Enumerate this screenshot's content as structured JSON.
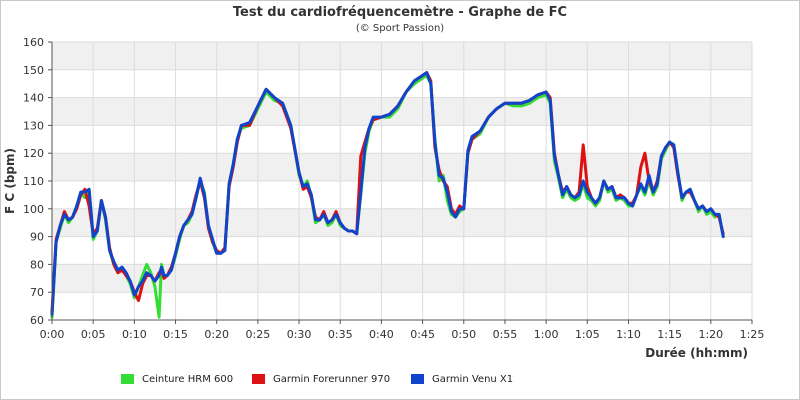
{
  "chart_data": {
    "type": "line",
    "title": "Test du cardiofréquencemètre - Graphe de FC",
    "subtitle": "(© Sport Passion)",
    "xlabel": "Durée (hh:mm)",
    "ylabel": "F C (bpm)",
    "xlim": [
      0,
      85
    ],
    "ylim": [
      60,
      160
    ],
    "x_ticks": [
      0,
      5,
      10,
      15,
      20,
      25,
      30,
      35,
      40,
      45,
      50,
      55,
      60,
      65,
      70,
      75,
      80,
      85
    ],
    "x_tick_labels": [
      "0:00",
      "0:05",
      "0:10",
      "0:15",
      "0:20",
      "0:25",
      "0:30",
      "0:35",
      "0:40",
      "0:45",
      "0:50",
      "0:55",
      "1:00",
      "1:05",
      "1:10",
      "1:15",
      "1:20",
      "1:25"
    ],
    "y_ticks": [
      60,
      70,
      80,
      90,
      100,
      110,
      120,
      130,
      140,
      150,
      160
    ],
    "grid": true,
    "legend_position": "bottom",
    "x_unit": "minutes",
    "series": [
      {
        "name": "Ceinture HRM 600",
        "color": "#33dd33",
        "x": [
          0,
          0.5,
          1,
          1.5,
          2,
          2.5,
          3,
          3.5,
          4,
          4.5,
          5,
          5.5,
          6,
          6.5,
          7,
          7.5,
          8,
          8.5,
          9,
          9.5,
          10,
          10.5,
          11,
          11.5,
          12,
          12.5,
          13,
          13.3,
          13.6,
          14,
          14.5,
          15,
          15.5,
          16,
          16.5,
          17,
          17.5,
          18,
          18.5,
          19,
          19.5,
          20,
          20.5,
          21,
          21.5,
          22,
          22.5,
          23,
          24,
          25,
          26,
          27,
          28,
          29,
          30,
          30.5,
          31,
          31.5,
          32,
          32.5,
          33,
          33.5,
          34,
          34.5,
          35,
          35.5,
          36,
          36.5,
          37,
          37.5,
          38,
          38.5,
          39,
          40,
          41,
          42,
          43,
          44,
          45,
          45.5,
          46,
          46.5,
          47,
          47.5,
          48,
          48.5,
          49,
          49.5,
          50,
          50.5,
          51,
          52,
          53,
          54,
          55,
          56,
          57,
          58,
          59,
          60,
          60.5,
          61,
          61.5,
          62,
          62.5,
          63,
          63.5,
          64,
          64.5,
          65,
          65.5,
          66,
          66.5,
          67,
          67.5,
          68,
          68.5,
          69,
          69.5,
          70,
          70.5,
          71,
          71.5,
          72,
          72.5,
          73,
          73.5,
          74,
          74.5,
          75,
          75.5,
          76,
          76.5,
          77,
          77.5,
          78,
          78.5,
          79,
          79.5,
          80,
          80.5,
          81,
          81.5
        ],
        "values": [
          61,
          88,
          93,
          98,
          95,
          97,
          101,
          106,
          104,
          107,
          89,
          92,
          103,
          96,
          85,
          80,
          77,
          79,
          76,
          73,
          68,
          72,
          76,
          80,
          77,
          72,
          61,
          80,
          76,
          76,
          78,
          83,
          89,
          94,
          95,
          98,
          104,
          110,
          106,
          93,
          88,
          84,
          84,
          86,
          109,
          116,
          125,
          129,
          130,
          136,
          142,
          139,
          138,
          130,
          112,
          108,
          110,
          104,
          95,
          96,
          98,
          94,
          95,
          98,
          94,
          93,
          92,
          92,
          91,
          105,
          120,
          128,
          132,
          133,
          133,
          136,
          142,
          145,
          147,
          148,
          145,
          125,
          110,
          112,
          103,
          98,
          97,
          99,
          100,
          120,
          125,
          127,
          133,
          136,
          138,
          137,
          137,
          138,
          140,
          141,
          138,
          117,
          111,
          104,
          107,
          104,
          103,
          104,
          109,
          104,
          103,
          101,
          103,
          110,
          106,
          107,
          103,
          104,
          103,
          101,
          101,
          105,
          108,
          105,
          110,
          105,
          108,
          118,
          121,
          124,
          123,
          113,
          103,
          106,
          107,
          103,
          99,
          101,
          98,
          99,
          97,
          98,
          90
        ]
      },
      {
        "name": "Garmin Forerunner 970",
        "color": "#dd1111",
        "x": [
          0,
          0.5,
          1,
          1.5,
          2,
          2.5,
          3,
          3.5,
          4,
          4.5,
          5,
          5.5,
          6,
          6.5,
          7,
          7.5,
          8,
          8.5,
          9,
          9.5,
          10,
          10.5,
          11,
          11.5,
          12,
          12.5,
          13,
          13.3,
          13.6,
          14,
          14.5,
          15,
          15.5,
          16,
          16.5,
          17,
          17.5,
          18,
          18.5,
          19,
          19.5,
          20,
          20.5,
          21,
          21.5,
          22,
          22.5,
          23,
          24,
          25,
          26,
          27,
          28,
          29,
          30,
          30.5,
          31,
          31.5,
          32,
          32.5,
          33,
          33.5,
          34,
          34.5,
          35,
          35.5,
          36,
          36.5,
          37,
          37.5,
          38,
          38.5,
          39,
          40,
          41,
          42,
          43,
          44,
          45,
          45.5,
          46,
          46.5,
          47,
          47.5,
          48,
          48.5,
          49,
          49.5,
          50,
          50.5,
          51,
          52,
          53,
          54,
          55,
          56,
          57,
          58,
          59,
          60,
          60.5,
          61,
          61.5,
          62,
          62.5,
          63,
          63.5,
          64,
          64.5,
          65,
          65.5,
          66,
          66.5,
          67,
          67.5,
          68,
          68.5,
          69,
          69.5,
          70,
          70.5,
          71,
          71.5,
          72,
          72.5,
          73,
          73.5,
          74,
          74.5,
          75,
          75.5,
          76,
          76.5,
          77,
          77.5,
          78,
          78.5,
          79,
          79.5,
          80,
          80.5,
          81,
          81.5
        ],
        "values": [
          63,
          89,
          94,
          99,
          96,
          97,
          100,
          105,
          107,
          101,
          91,
          93,
          103,
          97,
          86,
          80,
          77,
          78,
          76,
          74,
          70,
          67,
          73,
          76,
          76,
          74,
          77,
          78,
          75,
          76,
          79,
          84,
          90,
          94,
          96,
          99,
          105,
          110,
          104,
          93,
          88,
          85,
          84,
          86,
          108,
          115,
          124,
          130,
          130,
          137,
          143,
          140,
          137,
          129,
          113,
          107,
          108,
          104,
          97,
          96,
          99,
          95,
          96,
          99,
          95,
          93,
          92,
          92,
          91,
          119,
          124,
          129,
          132,
          133,
          134,
          137,
          142,
          146,
          148,
          149,
          146,
          122,
          114,
          110,
          108,
          100,
          98,
          101,
          100,
          120,
          125,
          128,
          133,
          136,
          138,
          138,
          138,
          139,
          141,
          142,
          140,
          120,
          112,
          106,
          108,
          105,
          104,
          106,
          123,
          108,
          104,
          102,
          104,
          110,
          107,
          108,
          104,
          105,
          104,
          102,
          102,
          105,
          115,
          120,
          110,
          106,
          110,
          119,
          122,
          124,
          122,
          112,
          104,
          106,
          106,
          103,
          100,
          101,
          99,
          100,
          98,
          97,
          91
        ]
      },
      {
        "name": "Garmin Venu X1",
        "color": "#1144cc",
        "x": [
          0,
          0.5,
          1,
          1.5,
          2,
          2.5,
          3,
          3.5,
          4,
          4.5,
          5,
          5.5,
          6,
          6.5,
          7,
          7.5,
          8,
          8.5,
          9,
          9.5,
          10,
          10.5,
          11,
          11.5,
          12,
          12.5,
          13,
          13.3,
          13.6,
          14,
          14.5,
          15,
          15.5,
          16,
          16.5,
          17,
          17.5,
          18,
          18.5,
          19,
          19.5,
          20,
          20.5,
          21,
          21.5,
          22,
          22.5,
          23,
          24,
          25,
          26,
          27,
          28,
          29,
          30,
          30.5,
          31,
          31.5,
          32,
          32.5,
          33,
          33.5,
          34,
          34.5,
          35,
          35.5,
          36,
          36.5,
          37,
          37.5,
          38,
          38.5,
          39,
          40,
          41,
          42,
          43,
          44,
          45,
          45.5,
          46,
          46.5,
          47,
          47.5,
          48,
          48.5,
          49,
          49.5,
          50,
          50.5,
          51,
          52,
          53,
          54,
          55,
          56,
          57,
          58,
          59,
          60,
          60.5,
          61,
          61.5,
          62,
          62.5,
          63,
          63.5,
          64,
          64.5,
          65,
          65.5,
          66,
          66.5,
          67,
          67.5,
          68,
          68.5,
          69,
          69.5,
          70,
          70.5,
          71,
          71.5,
          72,
          72.5,
          73,
          73.5,
          74,
          74.5,
          75,
          75.5,
          76,
          76.5,
          77,
          77.5,
          78,
          78.5,
          79,
          79.5,
          80,
          80.5,
          81,
          81.5
        ],
        "values": [
          62,
          88,
          94,
          98,
          96,
          97,
          101,
          106,
          106,
          107,
          90,
          92,
          103,
          97,
          85,
          81,
          78,
          79,
          77,
          74,
          69,
          72,
          74,
          77,
          76,
          74,
          76,
          79,
          76,
          76,
          78,
          84,
          90,
          94,
          96,
          98,
          104,
          111,
          105,
          94,
          89,
          84,
          84,
          85,
          109,
          116,
          125,
          130,
          131,
          137,
          143,
          140,
          138,
          130,
          113,
          108,
          109,
          105,
          96,
          96,
          98,
          95,
          96,
          98,
          95,
          93,
          92,
          92,
          91,
          106,
          122,
          129,
          133,
          133,
          134,
          137,
          142,
          146,
          148,
          149,
          145,
          124,
          112,
          111,
          106,
          99,
          97,
          100,
          100,
          121,
          126,
          128,
          133,
          136,
          138,
          138,
          138,
          139,
          141,
          142,
          139,
          119,
          112,
          105,
          108,
          105,
          104,
          105,
          110,
          106,
          104,
          102,
          104,
          110,
          107,
          108,
          104,
          104,
          104,
          102,
          101,
          105,
          109,
          106,
          112,
          106,
          109,
          119,
          122,
          124,
          123,
          113,
          104,
          106,
          107,
          103,
          100,
          101,
          99,
          100,
          98,
          98,
          90
        ]
      }
    ]
  }
}
